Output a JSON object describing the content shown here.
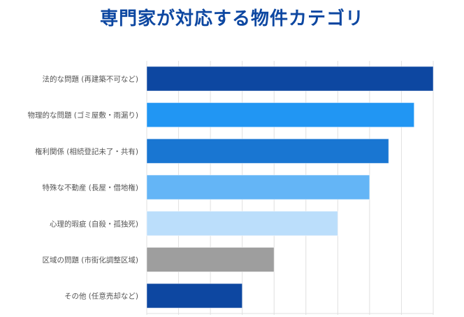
{
  "chart_data": {
    "type": "bar",
    "orientation": "horizontal",
    "title": "専門家が対応する物件カテゴリ",
    "categories": [
      "法的な問題 (再建築不可など)",
      "物理的な問題 (ゴミ屋敷・雨漏り)",
      "権利関係 (相続登記未了・共有)",
      "特殊な不動産 (長屋・借地権)",
      "心理的瑕疵 (自殺・孤独死)",
      "区域の問題 (市街化調整区域)",
      "その他 (任意売却など)"
    ],
    "values": [
      90,
      84,
      76,
      70,
      60,
      40,
      30
    ],
    "colors": [
      "#0d47a1",
      "#2196f3",
      "#1976d2",
      "#64b5f6",
      "#bbdefb",
      "#9e9e9e",
      "#0d47a1"
    ],
    "xlim": [
      0,
      90
    ],
    "grid": true,
    "xlabel": "",
    "ylabel": ""
  }
}
